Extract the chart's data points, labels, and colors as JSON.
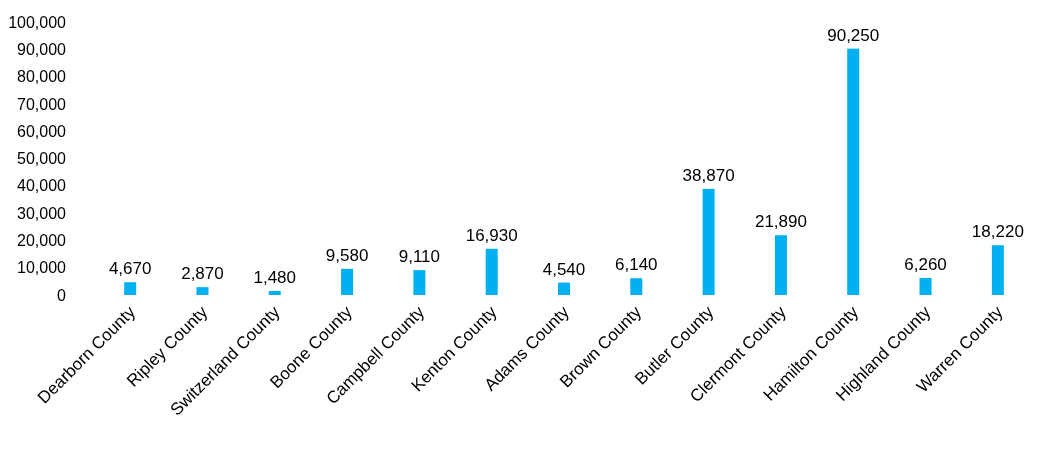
{
  "chart_data": {
    "type": "bar",
    "categories": [
      "Dearborn County",
      "Ripley County",
      "Switzerland County",
      "Boone County",
      "Campbell County",
      "Kenton County",
      "Adams County",
      "Brown County",
      "Butler County",
      "Clermont County",
      "Hamilton County",
      "Highland County",
      "Warren County"
    ],
    "values": [
      4670,
      2870,
      1480,
      9580,
      9110,
      16930,
      4540,
      6140,
      38870,
      21890,
      90250,
      6260,
      18220
    ],
    "color": "#00b0f0",
    "ylim": [
      0,
      100000
    ],
    "yticks": [
      {
        "value": 0,
        "label": "0"
      },
      {
        "value": 10000,
        "label": "10,000"
      },
      {
        "value": 20000,
        "label": "20,000"
      },
      {
        "value": 30000,
        "label": "30,000"
      },
      {
        "value": 40000,
        "label": "40,000"
      },
      {
        "value": 50000,
        "label": "50,000"
      },
      {
        "value": 60000,
        "label": "60,000"
      },
      {
        "value": 70000,
        "label": "70,000"
      },
      {
        "value": 80000,
        "label": "80,000"
      },
      {
        "value": 90000,
        "label": "90,000"
      },
      {
        "value": 100000,
        "label": "100,000"
      }
    ],
    "value_labels": [
      "4,670",
      "2,870",
      "1,480",
      "9,580",
      "9,110",
      "16,930",
      "4,540",
      "6,140",
      "38,870",
      "21,890",
      "90,250",
      "6,260",
      "18,220"
    ],
    "grid": false
  }
}
